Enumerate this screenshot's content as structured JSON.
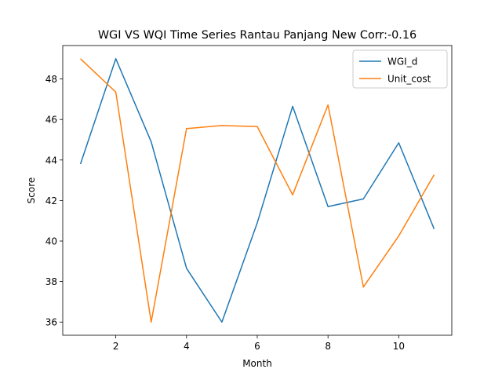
{
  "chart_data": {
    "type": "line",
    "title": "WGI VS WQI Time Series Rantau Panjang New Corr:-0.16",
    "xlabel": "Month",
    "ylabel": "Score",
    "x": [
      1,
      2,
      3,
      4,
      5,
      6,
      7,
      8,
      9,
      10,
      11
    ],
    "xlim": [
      0.5,
      11.5
    ],
    "ylim": [
      35.35,
      49.65
    ],
    "xticks": [
      2,
      4,
      6,
      8,
      10
    ],
    "yticks": [
      36,
      38,
      40,
      42,
      44,
      46,
      48
    ],
    "grid": false,
    "legend_position": "top-right",
    "series": [
      {
        "name": "WGI_d",
        "color": "#1f77b4",
        "values": [
          43.8,
          49.0,
          44.9,
          38.65,
          36.0,
          40.9,
          46.65,
          41.7,
          42.08,
          44.85,
          40.6
        ]
      },
      {
        "name": "Unit_cost",
        "color": "#ff7f0e",
        "values": [
          49.0,
          47.35,
          36.0,
          45.55,
          45.7,
          45.65,
          42.28,
          46.72,
          37.73,
          40.25,
          43.27
        ]
      }
    ]
  }
}
